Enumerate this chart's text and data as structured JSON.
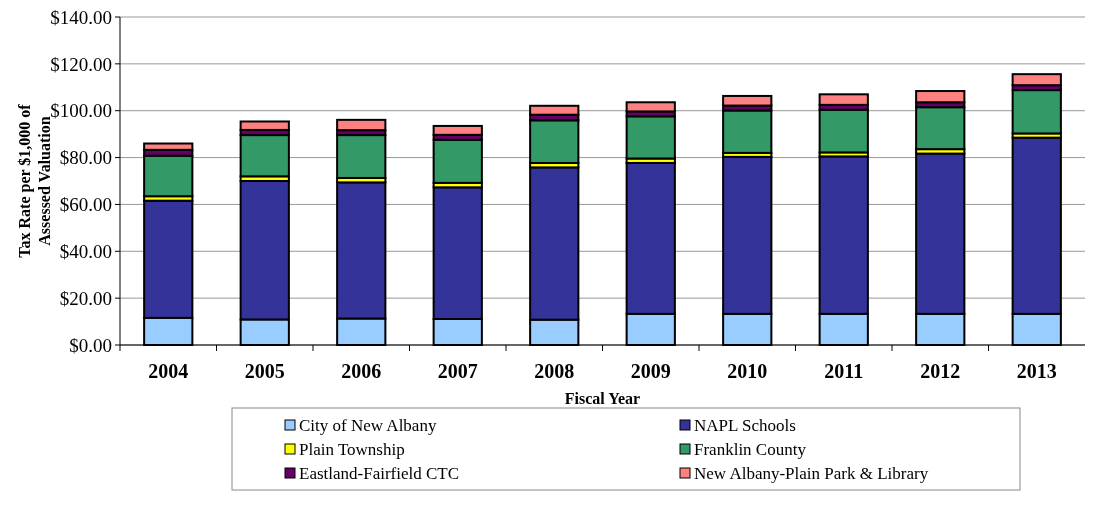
{
  "chart_data": {
    "type": "bar",
    "stacked": true,
    "xlabel": "Fiscal Year",
    "ylabel": "Tax Rate per $1,000 of Assessed Valuation",
    "categories": [
      "2004",
      "2005",
      "2006",
      "2007",
      "2008",
      "2009",
      "2010",
      "2011",
      "2012",
      "2013"
    ],
    "series": [
      {
        "name": "City of New Albany",
        "color": "#99ccff",
        "values": [
          11.6,
          10.9,
          11.3,
          11.1,
          10.8,
          13.3,
          13.3,
          13.3,
          13.3,
          13.3
        ]
      },
      {
        "name": "NAPL Schools",
        "color": "#333399",
        "values": [
          50.0,
          59.1,
          58.1,
          56.2,
          65.0,
          64.4,
          67.0,
          67.2,
          68.4,
          75.2
        ]
      },
      {
        "name": "Plain Township",
        "color": "#ffff00",
        "values": [
          1.9,
          2.0,
          1.9,
          1.9,
          1.9,
          1.9,
          1.7,
          1.7,
          1.9,
          1.8
        ]
      },
      {
        "name": "Franklin County",
        "color": "#339966",
        "values": [
          17.3,
          17.6,
          18.3,
          18.4,
          18.2,
          18.0,
          18.1,
          18.2,
          17.9,
          18.5
        ]
      },
      {
        "name": "Eastland-Fairfield CTC",
        "color": "#660066",
        "values": [
          2.5,
          2.2,
          2.1,
          2.1,
          2.4,
          2.1,
          2.1,
          2.1,
          2.1,
          2.1
        ]
      },
      {
        "name": "New Albany-Plain Park & Library",
        "color": "#ff8080",
        "values": [
          2.7,
          3.6,
          4.4,
          3.8,
          3.8,
          3.9,
          4.1,
          4.5,
          4.8,
          4.7
        ]
      }
    ],
    "ylim": [
      0,
      140
    ],
    "yticks": [
      {
        "value": 0,
        "label": "$0.00"
      },
      {
        "value": 20,
        "label": "$20.00"
      },
      {
        "value": 40,
        "label": "$40.00"
      },
      {
        "value": 60,
        "label": "$60.00"
      },
      {
        "value": 80,
        "label": "$80.00"
      },
      {
        "value": 100,
        "label": "$100.00"
      },
      {
        "value": 120,
        "label": "$120.00"
      },
      {
        "value": 140,
        "label": "$140.00"
      }
    ],
    "grid": "y",
    "legend": "bottom"
  }
}
